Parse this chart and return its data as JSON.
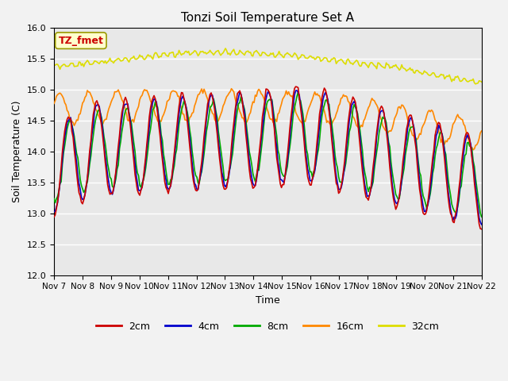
{
  "title": "Tonzi Soil Temperature Set A",
  "xlabel": "Time",
  "ylabel": "Soil Temperature (C)",
  "ylim": [
    12.0,
    16.0
  ],
  "yticks": [
    12.0,
    12.5,
    13.0,
    13.5,
    14.0,
    14.5,
    15.0,
    15.5,
    16.0
  ],
  "x_labels": [
    "Nov 7",
    "Nov 8",
    "Nov 9",
    "Nov 10",
    "Nov 11",
    "Nov 12",
    "Nov 13",
    "Nov 14",
    "Nov 15",
    "Nov 16",
    "Nov 17",
    "Nov 18",
    "Nov 19",
    "Nov 20",
    "Nov 21",
    "Nov 22"
  ],
  "colors": {
    "2cm": "#cc0000",
    "4cm": "#0000cc",
    "8cm": "#00aa00",
    "16cm": "#ff8800",
    "32cm": "#dddd00"
  },
  "legend_labels": [
    "2cm",
    "4cm",
    "8cm",
    "16cm",
    "32cm"
  ],
  "annotation_text": "TZ_fmet",
  "annotation_color": "#cc0000",
  "annotation_bg": "#ffffcc",
  "annotation_edge": "#999900",
  "plot_bg": "#e8e8e8",
  "fig_bg": "#f2f2f2",
  "grid_color": "#ffffff",
  "figsize": [
    6.4,
    4.8
  ],
  "dpi": 100
}
